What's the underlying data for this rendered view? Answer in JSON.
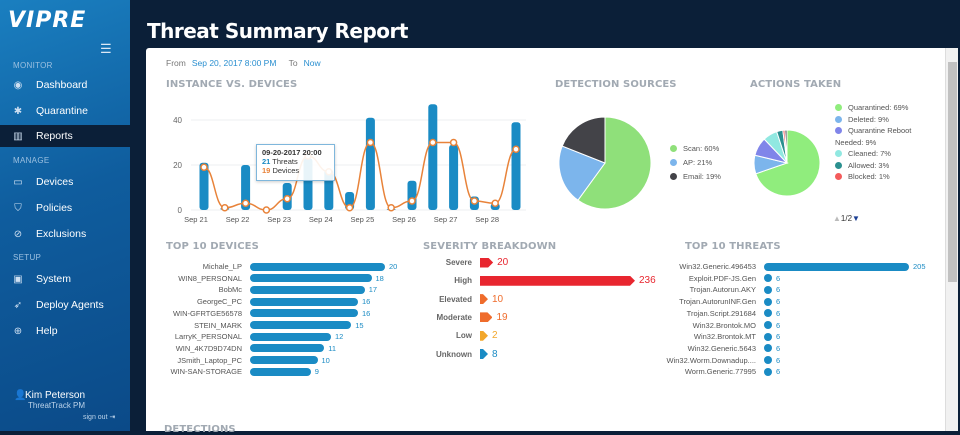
{
  "app": {
    "logo": "VIPRE",
    "title": "Threat Summary Report"
  },
  "sidebar": {
    "sections": [
      {
        "label": "MONITOR"
      },
      {
        "label": "MANAGE"
      },
      {
        "label": "SETUP"
      }
    ],
    "items": [
      {
        "label": "Dashboard",
        "icon": "dashboard-icon",
        "glyph": "◉"
      },
      {
        "label": "Quarantine",
        "icon": "bug-icon",
        "glyph": "✱"
      },
      {
        "label": "Reports",
        "icon": "bar-chart-icon",
        "glyph": "▥",
        "active": true
      },
      {
        "label": "Devices",
        "icon": "laptop-icon",
        "glyph": "▭"
      },
      {
        "label": "Policies",
        "icon": "shield-icon",
        "glyph": "⛉"
      },
      {
        "label": "Exclusions",
        "icon": "ban-icon",
        "glyph": "⊘"
      },
      {
        "label": "System",
        "icon": "monitor-icon",
        "glyph": "▣"
      },
      {
        "label": "Deploy Agents",
        "icon": "rocket-icon",
        "glyph": "➶"
      },
      {
        "label": "Help",
        "icon": "lifebuoy-icon",
        "glyph": "⊕"
      }
    ],
    "user": {
      "name": "Kim Peterson",
      "role": "ThreatTrack PM",
      "signout": "sign out"
    }
  },
  "range": {
    "from_label": "From",
    "from": "Sep 20, 2017 8:00 PM",
    "to_label": "To",
    "to": "Now"
  },
  "chart_data": [
    {
      "type": "bar+line",
      "title": "INSTANCE VS. DEVICES",
      "xticks": [
        "Sep 21",
        "Sep 22",
        "Sep 23",
        "Sep 24",
        "Sep 25",
        "Sep 26",
        "Sep 27",
        "Sep 28"
      ],
      "yticks": [
        0,
        20,
        40
      ],
      "ylim": [
        0,
        50
      ],
      "grid": true,
      "series": [
        {
          "name": "Threats",
          "type": "bar",
          "color": "#1a8bc4",
          "values": [
            21,
            1,
            20,
            0,
            12,
            23,
            18,
            8,
            41,
            0,
            13,
            47,
            29,
            6,
            3,
            39
          ]
        },
        {
          "name": "Devices",
          "type": "line",
          "color": "#e8833a",
          "values": [
            19,
            1,
            3,
            0,
            5,
            24,
            17,
            1,
            30,
            1,
            4,
            30,
            30,
            4,
            3,
            27
          ]
        }
      ],
      "tooltip": {
        "date": "09-20-2017 20:00",
        "threats": "21",
        "threats_label": "Threats",
        "devices": "19",
        "devices_label": "Devices"
      }
    },
    {
      "type": "pie",
      "title": "DETECTION SOURCES",
      "legend": "right",
      "slices": [
        {
          "label": "Scan: 60%",
          "value": 60,
          "color": "#8fe07a"
        },
        {
          "label": "AP: 21%",
          "value": 21,
          "color": "#7cb5ec"
        },
        {
          "label": "Email: 19%",
          "value": 19,
          "color": "#434348"
        }
      ]
    },
    {
      "type": "pie",
      "title": "ACTIONS TAKEN",
      "legend": "right",
      "page": "1/2",
      "slices": [
        {
          "label": "Quarantined: 69%",
          "value": 69,
          "color": "#90ed7d"
        },
        {
          "label": "Deleted: 9%",
          "value": 9,
          "color": "#7cb5ec"
        },
        {
          "label": "Quarantine Reboot Needed: 9%",
          "value": 9,
          "color": "#8085e9"
        },
        {
          "label": "Cleaned: 7%",
          "value": 7,
          "color": "#91e8e1"
        },
        {
          "label": "Allowed: 3%",
          "value": 3,
          "color": "#2b908f"
        },
        {
          "label": "Blocked: 1%",
          "value": 1,
          "color": "#f45b5b"
        },
        {
          "label": "",
          "value": 1,
          "color": "#434348"
        }
      ]
    },
    {
      "type": "bar",
      "title": "TOP 10 DEVICES",
      "color": "#1a8bc4",
      "categories": [
        "Michale_LP",
        "WIN8_PERSONAL",
        "BobMc",
        "GeorgeC_PC",
        "WIN-GFRTGE56578",
        "STEIN_MARK",
        "LarryK_PERSONAL",
        "WIN_4K7D9D74DN",
        "JSmith_Laptop_PC",
        "WIN-SAN-STORAGE"
      ],
      "values": [
        20,
        18,
        17,
        16,
        16,
        15,
        12,
        11,
        10,
        9
      ]
    },
    {
      "type": "bar",
      "title": "SEVERITY BREAKDOWN",
      "categories": [
        "Severe",
        "High",
        "Elevated",
        "Moderate",
        "Low",
        "Unknown"
      ],
      "values": [
        20,
        236,
        10,
        19,
        2,
        8
      ],
      "colors": [
        "#e8262f",
        "#e8262f",
        "#ef6c2c",
        "#ef6c2c",
        "#f2a72c",
        "#1a8bc4"
      ]
    },
    {
      "type": "bar",
      "title": "TOP 10 THREATS",
      "color": "#1a8bc4",
      "categories": [
        "Win32.Generic.496453",
        "Exploit.PDF-JS.Gen",
        "Trojan.Autorun.AKY",
        "Trojan.AutorunINF.Gen",
        "Trojan.Script.291684",
        "Win32.Brontok.MO",
        "Win32.Brontok.MT",
        "Win32.Generic.5643",
        "Win32.Worm.Downadup....",
        "Worm.Generic.77995"
      ],
      "values": [
        205,
        6,
        6,
        6,
        6,
        6,
        6,
        6,
        6,
        6
      ]
    }
  ],
  "footer_section": "DETECTIONS"
}
